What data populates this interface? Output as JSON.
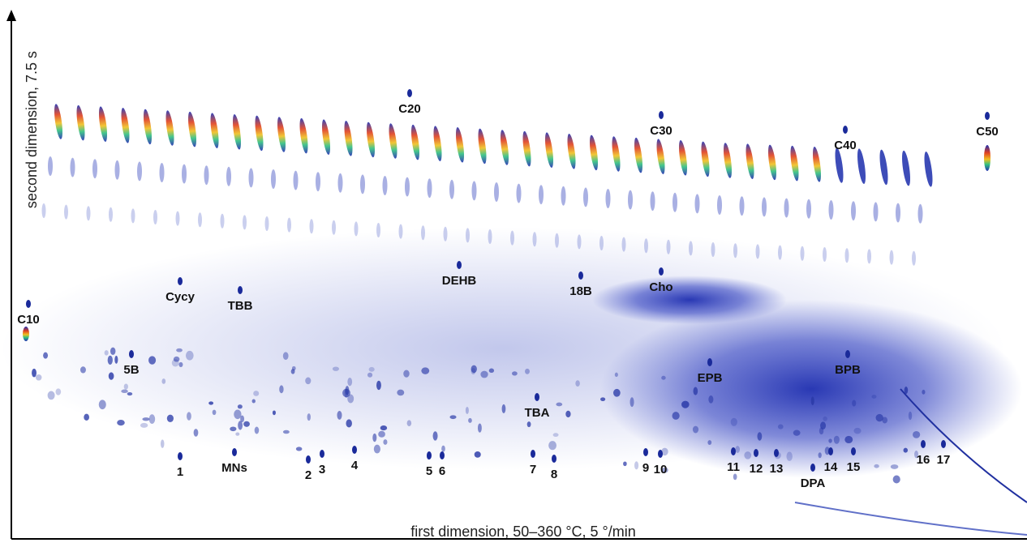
{
  "chart_data": {
    "type": "contour",
    "x_label": "first dimension, 50–360 °C, 5 °/min",
    "y_label": "second dimension, 7.5 s",
    "annotations": [
      "C10",
      "Cycy",
      "TBB",
      "5B",
      "DEHB",
      "C20",
      "18B",
      "Cho",
      "C30",
      "C40",
      "C50",
      "EPB",
      "BPB",
      "TBA",
      "1",
      "MNs",
      "2",
      "3",
      "4",
      "5",
      "6",
      "7",
      "8",
      "9",
      "10",
      "11",
      "12",
      "13",
      "DPA",
      "14",
      "15",
      "16",
      "17"
    ]
  }
}
